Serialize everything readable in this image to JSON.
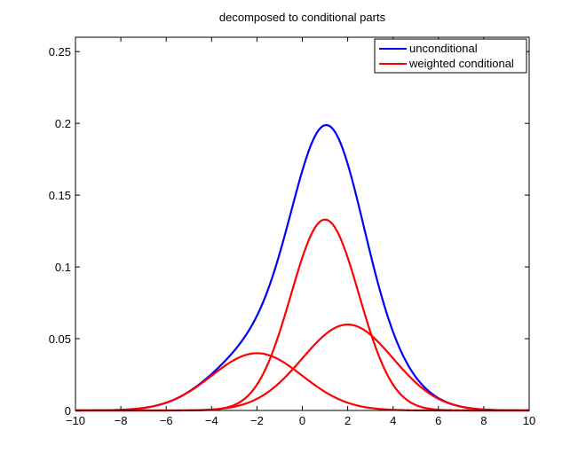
{
  "chart_data": {
    "type": "line",
    "title": "decomposed to conditional parts",
    "xlabel": "",
    "ylabel": "",
    "xlim": [
      -10,
      10
    ],
    "ylim": [
      0,
      0.26
    ],
    "xticks": [
      "−10",
      "−8",
      "−6",
      "−4",
      "−2",
      "0",
      "2",
      "4",
      "6",
      "8",
      "10"
    ],
    "yticks": [
      "0",
      "0.05",
      "0.1",
      "0.15",
      "0.2",
      "0.25"
    ],
    "grid": false,
    "legend_position": "top-right",
    "legend": [
      {
        "label": "unconditional",
        "color": "#0000ff"
      },
      {
        "label": "weighted conditional",
        "color": "#ff0000"
      }
    ],
    "series": [
      {
        "name": "unconditional",
        "color": "#0000ff",
        "components": [
          {
            "weight": 0.2,
            "mean": -2,
            "sd": 2
          },
          {
            "weight": 0.5,
            "mean": 1,
            "sd": 1.5
          },
          {
            "weight": 0.3,
            "mean": 2,
            "sd": 2
          }
        ]
      },
      {
        "name": "weighted conditional",
        "color": "#ff0000",
        "components": [
          {
            "weight": 0.2,
            "mean": -2,
            "sd": 2
          }
        ]
      },
      {
        "name": "weighted conditional",
        "color": "#ff0000",
        "components": [
          {
            "weight": 0.5,
            "mean": 1,
            "sd": 1.5
          }
        ]
      },
      {
        "name": "weighted conditional",
        "color": "#ff0000",
        "components": [
          {
            "weight": 0.3,
            "mean": 2,
            "sd": 2
          }
        ]
      }
    ]
  }
}
